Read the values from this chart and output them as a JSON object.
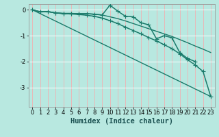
{
  "bg_color": "#b8e8e0",
  "grid_color": "#d0d0d0",
  "line_color": "#1a7a6a",
  "xlabel": "Humidex (Indice chaleur)",
  "xlabel_fontsize": 7.5,
  "tick_fontsize": 6,
  "xlim": [
    -0.5,
    23.5
  ],
  "ylim": [
    -3.75,
    0.22
  ],
  "yticks": [
    0,
    -1,
    -2,
    -3
  ],
  "xticks": [
    0,
    1,
    2,
    3,
    4,
    5,
    6,
    7,
    8,
    9,
    10,
    11,
    12,
    13,
    14,
    15,
    16,
    17,
    18,
    19,
    20,
    21,
    22,
    23
  ],
  "series": [
    {
      "x": [
        0,
        1,
        2,
        3,
        4,
        5,
        6,
        7,
        8,
        9,
        10,
        11,
        12,
        13,
        14,
        15,
        16,
        17,
        18,
        19,
        20,
        21
      ],
      "y": [
        0.0,
        -0.08,
        -0.07,
        -0.12,
        -0.14,
        -0.14,
        -0.15,
        -0.15,
        -0.17,
        -0.2,
        0.18,
        -0.05,
        -0.25,
        -0.27,
        -0.5,
        -0.58,
        -1.12,
        -1.0,
        -1.08,
        -1.65,
        -1.88,
        -2.0
      ],
      "marker": "+",
      "markersize": 4,
      "linewidth": 1.1,
      "zorder": 3
    },
    {
      "x": [
        0,
        1,
        2,
        3,
        4,
        5,
        6,
        7,
        8,
        9,
        10,
        11,
        12,
        13,
        14,
        15,
        16,
        17,
        18,
        19,
        20,
        21,
        22,
        23
      ],
      "y": [
        0.0,
        -0.07,
        -0.07,
        -0.12,
        -0.14,
        -0.14,
        -0.15,
        -0.15,
        -0.17,
        -0.2,
        -0.27,
        -0.34,
        -0.43,
        -0.53,
        -0.63,
        -0.73,
        -0.83,
        -0.93,
        -1.03,
        -1.15,
        -1.27,
        -1.4,
        -1.52,
        -1.65
      ],
      "marker": null,
      "markersize": 0,
      "linewidth": 1.0,
      "zorder": 2
    },
    {
      "x": [
        0,
        1,
        2,
        3,
        4,
        5,
        6,
        7,
        8,
        9,
        10,
        11,
        12,
        13,
        14,
        15,
        16,
        17,
        18,
        19,
        20,
        21,
        22,
        23
      ],
      "y": [
        0.0,
        -0.08,
        -0.07,
        -0.12,
        -0.15,
        -0.16,
        -0.18,
        -0.21,
        -0.25,
        -0.32,
        -0.42,
        -0.53,
        -0.67,
        -0.8,
        -0.93,
        -1.07,
        -1.2,
        -1.35,
        -1.5,
        -1.7,
        -1.93,
        -2.13,
        -2.38,
        -3.35
      ],
      "marker": "+",
      "markersize": 4,
      "linewidth": 1.1,
      "zorder": 3
    },
    {
      "x": [
        0,
        23
      ],
      "y": [
        0.0,
        -3.35
      ],
      "marker": null,
      "markersize": 0,
      "linewidth": 1.0,
      "zorder": 1
    }
  ]
}
